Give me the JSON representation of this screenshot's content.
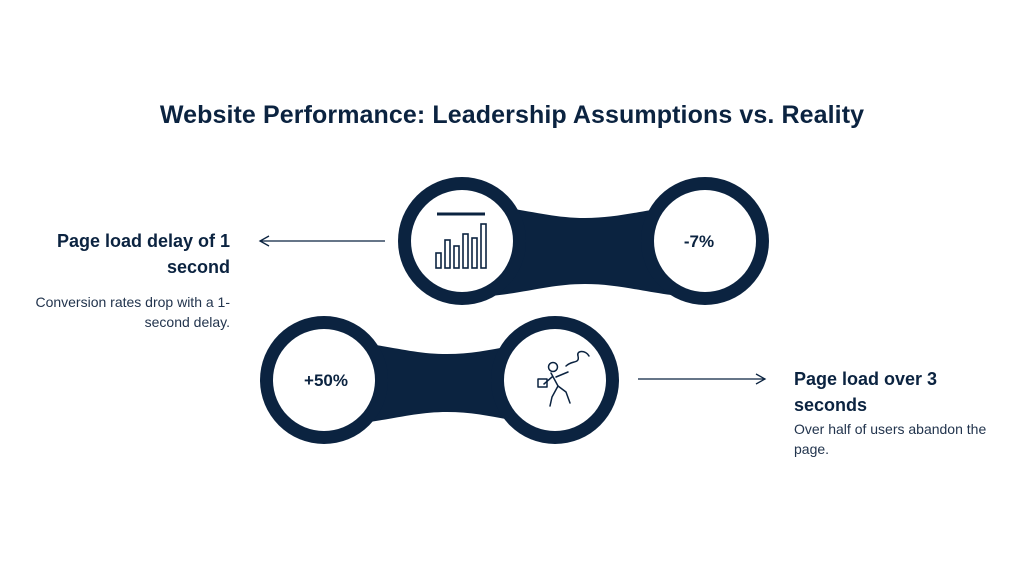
{
  "title": "Website Performance: Leadership Assumptions vs. Reality",
  "colors": {
    "navy": "#0b2340",
    "text": "#22344d",
    "background": "#ffffff"
  },
  "connectors": [
    {
      "id": "top",
      "left_icon": "bar-chart-icon",
      "right_value": "-7%",
      "heading": "Page load delay of 1 second",
      "description": "Conversion rates drop with a 1-second delay."
    },
    {
      "id": "bottom",
      "left_value": "+50%",
      "right_icon": "running-person-icon",
      "heading": "Page load over 3 seconds",
      "description": "Over half of users abandon the page."
    }
  ]
}
